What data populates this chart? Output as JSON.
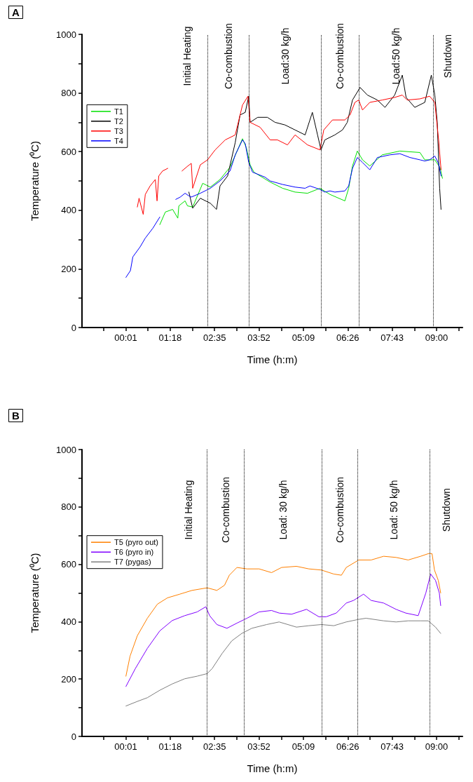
{
  "chart_data": [
    {
      "type": "line",
      "title": "A",
      "xlabel": "Time (h:m)",
      "ylabel": "Temperature (⁰C)",
      "xlim": [
        -1.25,
        9.75
      ],
      "ylim": [
        0,
        1000
      ],
      "xticks": [
        {
          "value": -0.625,
          "label": null
        },
        {
          "value": 0.0167,
          "label": "00:01"
        },
        {
          "value": 0.6583,
          "label": null
        },
        {
          "value": 1.3,
          "label": "01:18"
        },
        {
          "value": 1.9417,
          "label": null
        },
        {
          "value": 2.5833,
          "label": "02:35"
        },
        {
          "value": 3.225,
          "label": null
        },
        {
          "value": 3.8667,
          "label": "03:52"
        },
        {
          "value": 4.5083,
          "label": null
        },
        {
          "value": 5.15,
          "label": "05:09"
        },
        {
          "value": 5.7917,
          "label": null
        },
        {
          "value": 6.4333,
          "label": "06:26"
        },
        {
          "value": 7.075,
          "label": null
        },
        {
          "value": 7.7167,
          "label": "07:43"
        },
        {
          "value": 8.3583,
          "label": null
        },
        {
          "value": 9,
          "label": "09:00"
        },
        {
          "value": 9.6417,
          "label": null
        }
      ],
      "yticks": [
        0,
        {
          "value": 100,
          "label": null
        },
        200,
        {
          "value": 300,
          "label": null
        },
        400,
        {
          "value": 500,
          "label": null
        },
        600,
        {
          "value": 700,
          "label": null
        },
        800,
        {
          "value": 900,
          "label": null
        },
        1000
      ],
      "grid": false,
      "legend": "top left",
      "marker": "none",
      "line_style": "solid",
      "series": [
        {
          "name": "T1",
          "color": "#00e000",
          "x": [
            1.0,
            1.16,
            1.37,
            1.52,
            1.55,
            1.73,
            1.8,
            1.95,
            2.24,
            2.46,
            2.74,
            3.03,
            3.39,
            3.5,
            3.61,
            3.72,
            4.19,
            4.55,
            4.91,
            5.27,
            5.63,
            5.92,
            6.35,
            6.46,
            6.57,
            6.71,
            6.86,
            7.07,
            7.43,
            7.94,
            8.52,
            8.66,
            8.95,
            9.1,
            9.17
          ],
          "values": [
            351,
            394,
            403,
            373,
            415,
            432,
            415,
            411,
            492,
            479,
            505,
            547,
            644,
            614,
            555,
            530,
            496,
            475,
            462,
            458,
            475,
            454,
            432,
            475,
            551,
            602,
            572,
            551,
            589,
            602,
            597,
            572,
            572,
            546,
            509
          ]
        },
        {
          "name": "T2",
          "color": "#000000",
          "x": [
            1.84,
            1.95,
            2.17,
            2.46,
            2.64,
            2.74,
            2.96,
            3.18,
            3.32,
            3.47,
            3.57,
            3.61,
            3.83,
            4.11,
            4.33,
            4.62,
            4.91,
            5.2,
            5.41,
            5.56,
            5.66,
            5.77,
            6.06,
            6.28,
            6.42,
            6.57,
            6.79,
            7.0,
            7.29,
            7.51,
            7.79,
            8.01,
            8.12,
            8.37,
            8.66,
            8.85,
            8.95,
            9.02,
            9.09,
            9.13
          ],
          "values": [
            462,
            407,
            441,
            424,
            403,
            483,
            517,
            631,
            725,
            734,
            789,
            700,
            717,
            717,
            700,
            691,
            674,
            657,
            734,
            657,
            606,
            640,
            657,
            674,
            700,
            776,
            819,
            793,
            776,
            751,
            793,
            861,
            785,
            751,
            768,
            861,
            793,
            700,
            475,
            403
          ]
        },
        {
          "name": "T3",
          "color": "#ff0000",
          "x": [
            0.35,
            0.4,
            0.52,
            0.58,
            0.72,
            0.87,
            0.92,
            0.97,
            1.08,
            1.23,
            1.4,
            1.64,
            1.81,
            1.91,
            1.95,
            2.17,
            2.38,
            2.6,
            2.89,
            3.18,
            3.39,
            3.55,
            3.61,
            3.9,
            4.19,
            4.4,
            4.69,
            4.91,
            5.27,
            5.63,
            5.74,
            5.99,
            6.35,
            6.5,
            6.64,
            6.75,
            6.86,
            7.07,
            7.43,
            7.79,
            8.01,
            8.15,
            8.52,
            8.8,
            8.95,
            9.06,
            9.13
          ],
          "values": [
            411,
            441,
            386,
            454,
            483,
            505,
            432,
            517,
            534,
            543,
            null,
            534,
            551,
            560,
            475,
            555,
            572,
            606,
            640,
            657,
            759,
            789,
            700,
            683,
            640,
            640,
            623,
            657,
            623,
            606,
            674,
            708,
            708,
            725,
            768,
            776,
            742,
            768,
            776,
            785,
            793,
            776,
            780,
            789,
            768,
            640,
            538
          ]
        },
        {
          "name": "T4",
          "color": "#0000ff",
          "x": [
            0.02,
            0.15,
            0.22,
            0.43,
            0.58,
            0.8,
            1.0,
            1.2,
            1.46,
            1.59,
            1.73,
            1.84,
            1.91,
            2.17,
            2.46,
            2.74,
            3.03,
            3.18,
            3.39,
            3.47,
            3.57,
            3.68,
            4.04,
            4.19,
            4.55,
            4.91,
            5.2,
            5.34,
            5.63,
            5.77,
            5.92,
            6.06,
            6.35,
            6.46,
            6.57,
            6.71,
            6.86,
            7.07,
            7.29,
            7.65,
            7.94,
            8.23,
            8.52,
            8.66,
            8.8,
            8.95,
            9.06,
            9.13
          ],
          "values": [
            171,
            194,
            241,
            275,
            305,
            339,
            377,
            null,
            437,
            445,
            458,
            449,
            445,
            458,
            475,
            500,
            534,
            589,
            640,
            627,
            563,
            530,
            513,
            500,
            488,
            479,
            475,
            483,
            471,
            462,
            466,
            462,
            466,
            483,
            543,
            580,
            563,
            538,
            580,
            589,
            593,
            580,
            572,
            568,
            572,
            585,
            559,
            517
          ]
        }
      ],
      "ref_lines": [
        {
          "axis": "x",
          "value": 2.39,
          "color": "#000000",
          "line_style": "dotted"
        },
        {
          "axis": "x",
          "value": 3.58,
          "color": "#000000",
          "line_style": "dotted"
        },
        {
          "axis": "x",
          "value": 5.67,
          "color": "#000000",
          "line_style": "dotted"
        },
        {
          "axis": "x",
          "value": 6.75,
          "color": "#000000",
          "line_style": "dotted"
        },
        {
          "axis": "x",
          "value": 8.91,
          "color": "#000000",
          "line_style": "dotted"
        }
      ],
      "annotations": [
        "Initial Heating",
        "Co-combustion",
        "Load:30 kg/h",
        "Co-combustion",
        "Load:50 kg/h",
        "Shutdown"
      ]
    },
    {
      "type": "line",
      "title": "B",
      "xlabel": "Time (h:m)",
      "ylabel": "Temperature (⁰C)",
      "xlim": [
        -1.25,
        9.75
      ],
      "ylim": [
        0,
        1000
      ],
      "xticks": [
        {
          "value": -0.625,
          "label": null
        },
        {
          "value": 0.0167,
          "label": "00:01"
        },
        {
          "value": 0.6583,
          "label": null
        },
        {
          "value": 1.3,
          "label": "01:18"
        },
        {
          "value": 1.9417,
          "label": null
        },
        {
          "value": 2.5833,
          "label": "02:35"
        },
        {
          "value": 3.225,
          "label": null
        },
        {
          "value": 3.8667,
          "label": "03:52"
        },
        {
          "value": 4.5083,
          "label": null
        },
        {
          "value": 5.15,
          "label": "05:09"
        },
        {
          "value": 5.7917,
          "label": null
        },
        {
          "value": 6.4333,
          "label": "06:26"
        },
        {
          "value": 7.075,
          "label": null
        },
        {
          "value": 7.7167,
          "label": "07:43"
        },
        {
          "value": 8.3583,
          "label": null
        },
        {
          "value": 9,
          "label": "09:00"
        },
        {
          "value": 9.6417,
          "label": null
        }
      ],
      "yticks": [
        0,
        {
          "value": 100,
          "label": null
        },
        200,
        {
          "value": 300,
          "label": null
        },
        400,
        {
          "value": 500,
          "label": null
        },
        600,
        {
          "value": 700,
          "label": null
        },
        800,
        {
          "value": 900,
          "label": null
        },
        1000
      ],
      "grid": false,
      "legend": "top left",
      "marker": "none",
      "line_style": "solid",
      "series": [
        {
          "name": "T5 (pyro out)",
          "color": "#ff8000",
          "x": [
            0.02,
            0.14,
            0.35,
            0.64,
            0.93,
            1.22,
            1.58,
            1.93,
            2.37,
            2.65,
            2.87,
            3.01,
            3.23,
            3.52,
            3.87,
            4.23,
            4.52,
            4.95,
            5.31,
            5.67,
            6.03,
            6.25,
            6.39,
            6.75,
            7.11,
            7.47,
            7.83,
            8.18,
            8.54,
            8.76,
            8.87,
            8.94,
            9.05,
            9.12
          ],
          "values": [
            210,
            280,
            351,
            412,
            461,
            483,
            496,
            509,
            518,
            509,
            527,
            562,
            589,
            584,
            584,
            571,
            589,
            593,
            584,
            580,
            566,
            562,
            589,
            615,
            615,
            628,
            624,
            615,
            628,
            637,
            637,
            580,
            544,
            500
          ]
        },
        {
          "name": "T6 (pyro in)",
          "color": "#8000ff",
          "x": [
            0.02,
            0.29,
            0.64,
            1.0,
            1.36,
            1.72,
            2.08,
            2.33,
            2.44,
            2.65,
            2.94,
            3.23,
            3.52,
            3.87,
            4.23,
            4.45,
            4.81,
            5.24,
            5.6,
            5.81,
            6.1,
            6.39,
            6.6,
            6.89,
            7.11,
            7.47,
            7.83,
            8.11,
            8.47,
            8.69,
            8.83,
            8.97,
            9.08,
            9.12
          ],
          "values": [
            174,
            236,
            307,
            368,
            404,
            421,
            434,
            452,
            421,
            390,
            377,
            395,
            412,
            434,
            439,
            430,
            426,
            443,
            417,
            417,
            430,
            465,
            474,
            496,
            474,
            465,
            443,
            430,
            421,
            500,
            566,
            544,
            500,
            456
          ]
        },
        {
          "name": "T7 (pygas)",
          "color": "#808080",
          "x": [
            0.02,
            0.35,
            0.64,
            1.0,
            1.36,
            1.72,
            2.08,
            2.37,
            2.51,
            2.8,
            3.08,
            3.37,
            3.66,
            4.09,
            4.45,
            4.95,
            5.31,
            5.67,
            6.03,
            6.39,
            6.75,
            6.96,
            7.47,
            7.83,
            8.18,
            8.54,
            8.76,
            8.97,
            9.12
          ],
          "values": [
            106,
            122,
            135,
            161,
            183,
            201,
            210,
            219,
            236,
            289,
            333,
            359,
            377,
            390,
            399,
            381,
            386,
            390,
            386,
            399,
            408,
            412,
            403,
            399,
            403,
            403,
            403,
            381,
            359
          ]
        }
      ],
      "ref_lines": [
        {
          "axis": "x",
          "value": 2.37,
          "color": "#000000",
          "line_style": "dotted"
        },
        {
          "axis": "x",
          "value": 3.44,
          "color": "#000000",
          "line_style": "dotted"
        },
        {
          "axis": "x",
          "value": 5.68,
          "color": "#000000",
          "line_style": "dotted"
        },
        {
          "axis": "x",
          "value": 6.72,
          "color": "#000000",
          "line_style": "dotted"
        },
        {
          "axis": "x",
          "value": 8.81,
          "color": "#000000",
          "line_style": "dotted"
        }
      ],
      "annotations": [
        "Initial Heating",
        "Co-combustion",
        "Load: 30 kg/h",
        "Co-combustion",
        "Load: 50 kg/h",
        "Shutdown"
      ]
    }
  ]
}
